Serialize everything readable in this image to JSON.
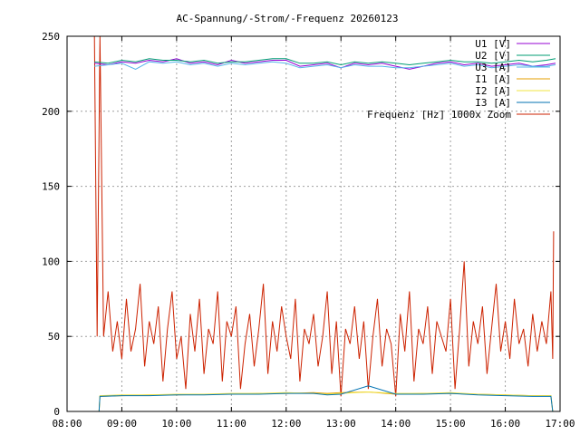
{
  "chart_data": {
    "type": "line",
    "title": "AC-Spannung/-Strom/-Frequenz 20260123",
    "xlabel": "",
    "ylabel": "",
    "ylim": [
      0,
      250
    ],
    "xlim": [
      "08:00",
      "17:00"
    ],
    "x_ticks": [
      "08:00",
      "09:00",
      "10:00",
      "11:00",
      "12:00",
      "13:00",
      "14:00",
      "15:00",
      "16:00",
      "17:00"
    ],
    "y_ticks": [
      "0",
      "50",
      "100",
      "150",
      "200",
      "250"
    ],
    "grid": true,
    "legend_position": "top-right",
    "series": [
      {
        "name": "U1 [V]",
        "color": "#9400d3",
        "x": [
          "08:30",
          "08:45",
          "09:00",
          "09:15",
          "09:30",
          "09:45",
          "10:00",
          "10:15",
          "10:30",
          "10:45",
          "11:00",
          "11:15",
          "11:30",
          "11:45",
          "12:00",
          "12:15",
          "12:30",
          "12:45",
          "13:00",
          "13:15",
          "13:30",
          "13:45",
          "14:00",
          "14:15",
          "14:30",
          "14:45",
          "15:00",
          "15:15",
          "15:30",
          "15:45",
          "16:00",
          "16:15",
          "16:30",
          "16:45",
          "16:55"
        ],
        "values": [
          232,
          231,
          233,
          232,
          234,
          233,
          235,
          232,
          233,
          231,
          234,
          232,
          233,
          234,
          234,
          230,
          231,
          232,
          229,
          232,
          231,
          232,
          230,
          228,
          230,
          232,
          233,
          231,
          232,
          230,
          231,
          232,
          230,
          231,
          232
        ]
      },
      {
        "name": "U2 [V]",
        "color": "#009e73",
        "x": [
          "08:30",
          "08:45",
          "09:00",
          "09:15",
          "09:30",
          "09:45",
          "10:00",
          "10:15",
          "10:30",
          "10:45",
          "11:00",
          "11:15",
          "11:30",
          "11:45",
          "12:00",
          "12:15",
          "12:30",
          "12:45",
          "13:00",
          "13:15",
          "13:30",
          "13:45",
          "14:00",
          "14:15",
          "14:30",
          "14:45",
          "15:00",
          "15:15",
          "15:30",
          "15:45",
          "16:00",
          "16:15",
          "16:30",
          "16:45",
          "16:55"
        ],
        "values": [
          233,
          232,
          234,
          233,
          235,
          234,
          234,
          233,
          234,
          232,
          233,
          233,
          234,
          235,
          235,
          232,
          232,
          233,
          231,
          233,
          232,
          233,
          232,
          231,
          232,
          233,
          234,
          233,
          233,
          232,
          233,
          234,
          233,
          234,
          235
        ]
      },
      {
        "name": "U3 [A]",
        "color": "#56b4e9",
        "x": [
          "08:30",
          "08:45",
          "09:00",
          "09:15",
          "09:30",
          "09:45",
          "10:00",
          "10:15",
          "10:30",
          "10:45",
          "11:00",
          "11:15",
          "11:30",
          "11:45",
          "12:00",
          "12:15",
          "12:30",
          "12:45",
          "13:00",
          "13:15",
          "13:30",
          "13:45",
          "14:00",
          "14:15",
          "14:30",
          "14:45",
          "15:00",
          "15:15",
          "15:30",
          "15:45",
          "16:00",
          "16:15",
          "16:30",
          "16:45",
          "16:55"
        ],
        "values": [
          230,
          231,
          232,
          228,
          233,
          232,
          233,
          231,
          232,
          230,
          232,
          231,
          232,
          233,
          232,
          229,
          230,
          231,
          229,
          231,
          230,
          230,
          229,
          229,
          230,
          231,
          232,
          230,
          231,
          229,
          230,
          231,
          230,
          230,
          231
        ]
      },
      {
        "name": "I1 [A]",
        "color": "#e69f00",
        "x": [
          "08:30",
          "08:35",
          "08:36",
          "09:00",
          "09:30",
          "10:00",
          "10:30",
          "11:00",
          "11:30",
          "12:00",
          "12:30",
          "12:45",
          "13:00",
          "13:30",
          "14:00",
          "14:30",
          "15:00",
          "15:30",
          "16:00",
          "16:30",
          "16:50",
          "16:52"
        ],
        "values": [
          0,
          0,
          10,
          10.5,
          11,
          11,
          11.5,
          11.5,
          12,
          12,
          12.5,
          12,
          12.5,
          13,
          11.5,
          12,
          12,
          11.5,
          11,
          10.5,
          10.5,
          0
        ]
      },
      {
        "name": "I2 [A]",
        "color": "#f0e442",
        "x": [
          "08:30",
          "08:35",
          "08:36",
          "09:00",
          "09:30",
          "10:00",
          "10:30",
          "11:00",
          "11:30",
          "12:00",
          "12:30",
          "12:45",
          "13:00",
          "13:30",
          "14:00",
          "14:30",
          "15:00",
          "15:30",
          "16:00",
          "16:30",
          "16:50",
          "16:52"
        ],
        "values": [
          0,
          0,
          10.5,
          11,
          11,
          11.5,
          11.5,
          12,
          12,
          12.5,
          12,
          11.5,
          12,
          13,
          12,
          12,
          12.5,
          11.5,
          11,
          10.5,
          10.5,
          0
        ]
      },
      {
        "name": "I3 [A]",
        "color": "#0072b2",
        "x": [
          "08:30",
          "08:35",
          "08:36",
          "09:00",
          "09:30",
          "10:00",
          "10:30",
          "11:00",
          "11:30",
          "12:00",
          "12:30",
          "12:45",
          "13:00",
          "13:30",
          "14:00",
          "14:30",
          "15:00",
          "15:30",
          "16:00",
          "16:30",
          "16:50",
          "16:52"
        ],
        "values": [
          0,
          0,
          10,
          10.5,
          10.5,
          11,
          11,
          11.5,
          11.5,
          12,
          12,
          11,
          11.5,
          17,
          11.5,
          11.5,
          12,
          11,
          10.5,
          10,
          10,
          0
        ]
      },
      {
        "name": "Frequenz [Hz] 1000x Zoom",
        "color": "#cc2200",
        "x": [
          "08:30",
          "08:33",
          "08:36",
          "08:40",
          "08:45",
          "08:50",
          "08:55",
          "09:00",
          "09:05",
          "09:10",
          "09:15",
          "09:20",
          "09:25",
          "09:30",
          "09:35",
          "09:40",
          "09:45",
          "09:50",
          "09:55",
          "10:00",
          "10:05",
          "10:10",
          "10:15",
          "10:20",
          "10:25",
          "10:30",
          "10:35",
          "10:40",
          "10:45",
          "10:50",
          "10:55",
          "11:00",
          "11:05",
          "11:10",
          "11:15",
          "11:20",
          "11:25",
          "11:30",
          "11:35",
          "11:40",
          "11:45",
          "11:50",
          "11:55",
          "12:00",
          "12:05",
          "12:10",
          "12:15",
          "12:20",
          "12:25",
          "12:30",
          "12:35",
          "12:40",
          "12:45",
          "12:50",
          "12:55",
          "13:00",
          "13:05",
          "13:10",
          "13:15",
          "13:20",
          "13:25",
          "13:30",
          "13:35",
          "13:40",
          "13:45",
          "13:50",
          "13:55",
          "14:00",
          "14:05",
          "14:10",
          "14:15",
          "14:20",
          "14:25",
          "14:30",
          "14:35",
          "14:40",
          "14:45",
          "14:50",
          "14:55",
          "15:00",
          "15:05",
          "15:10",
          "15:15",
          "15:20",
          "15:25",
          "15:30",
          "15:35",
          "15:40",
          "15:45",
          "15:50",
          "15:55",
          "16:00",
          "16:05",
          "16:10",
          "16:15",
          "16:20",
          "16:25",
          "16:30",
          "16:35",
          "16:40",
          "16:45",
          "16:50",
          "16:52",
          "16:53"
        ],
        "values": [
          250,
          50,
          250,
          50,
          80,
          40,
          60,
          35,
          75,
          40,
          55,
          85,
          30,
          60,
          45,
          70,
          20,
          55,
          80,
          35,
          50,
          15,
          65,
          40,
          75,
          25,
          55,
          45,
          80,
          20,
          60,
          50,
          70,
          15,
          45,
          65,
          30,
          55,
          85,
          25,
          60,
          40,
          70,
          50,
          35,
          75,
          20,
          55,
          45,
          65,
          30,
          50,
          80,
          25,
          60,
          10,
          55,
          45,
          70,
          35,
          60,
          15,
          50,
          75,
          30,
          55,
          45,
          10,
          65,
          40,
          80,
          20,
          55,
          45,
          70,
          25,
          60,
          50,
          40,
          75,
          15,
          55,
          100,
          30,
          60,
          45,
          70,
          25,
          55,
          85,
          40,
          60,
          35,
          75,
          45,
          55,
          30,
          65,
          40,
          60,
          45,
          80,
          35,
          120
        ]
      }
    ]
  }
}
